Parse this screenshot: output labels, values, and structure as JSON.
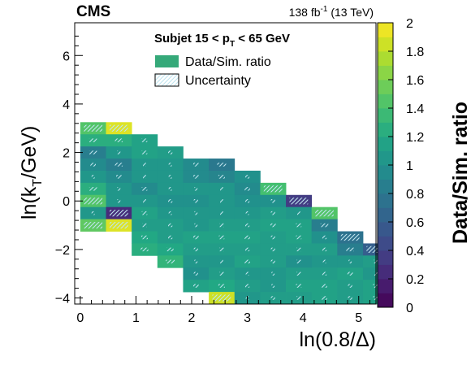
{
  "header": {
    "experiment": "CMS",
    "lumi": "138 fb",
    "lumi_exp": "-1",
    "energy": " (13 TeV)"
  },
  "legend": {
    "title_pre": "Subjet 15 < p",
    "title_sub": "T",
    "title_post": " < 65 GeV",
    "ratio_label": "Data/Sim. ratio",
    "uncertainty_label": "Uncertainty",
    "ratio_color": "#35a979"
  },
  "axes": {
    "x_label": "ln(0.8/Δ)",
    "y_label_pre": "ln(k",
    "y_label_sub": "T",
    "y_label_post": "/GeV)",
    "colorbar_label": "Data/Sim. ratio"
  },
  "chart_data": {
    "type": "heatmap",
    "x_bin_width": 0.4615,
    "y_bin_width": 0.5,
    "xlim": [
      -0.1,
      5.31
    ],
    "ylim": [
      -4.25,
      7.35
    ],
    "x_ticks": [
      0,
      1,
      2,
      3,
      4,
      5
    ],
    "y_ticks": [
      -4,
      -2,
      0,
      2,
      4,
      6
    ],
    "zlim": [
      0,
      2
    ],
    "z_ticks": [
      "0",
      "0.2",
      "0.4",
      "0.6",
      "0.8",
      "1",
      "1.2",
      "1.4",
      "1.6",
      "1.8",
      "2"
    ],
    "colormap": "viridis",
    "columns": [
      {
        "x0": 0.0,
        "y_top": 3.25,
        "values": [
          1.45,
          1.25,
          0.85,
          0.95,
          1.05,
          1.25,
          1.45,
          1.05,
          1.5
        ]
      },
      {
        "x0": 0.4615,
        "y_top": 3.25,
        "values": [
          1.9,
          1.25,
          1.05,
          0.85,
          0.95,
          1.05,
          1.05,
          0.25,
          1.9
        ]
      },
      {
        "x0": 0.923,
        "y_top": 2.75,
        "values": [
          1.15,
          1.15,
          1.05,
          1.05,
          0.95,
          1.05,
          1.15,
          1.1,
          1.2,
          1.25
        ]
      },
      {
        "x0": 1.3845,
        "y_top": 2.25,
        "values": [
          1.1,
          1.05,
          1.05,
          1.05,
          1.0,
          1.05,
          1.1,
          1.1,
          1.2,
          1.3
        ]
      },
      {
        "x0": 1.846,
        "y_top": 1.75,
        "values": [
          0.95,
          0.95,
          1.05,
          1.0,
          1.05,
          1.05,
          1.15,
          1.1,
          1.05,
          1.0,
          1.15
        ]
      },
      {
        "x0": 2.3075,
        "y_top": 1.75,
        "values": [
          0.8,
          0.9,
          1.05,
          1.05,
          1.05,
          1.1,
          1.15,
          1.1,
          1.05,
          1.1,
          1.2,
          1.85
        ]
      },
      {
        "x0": 2.769,
        "y_top": 1.25,
        "values": [
          1.0,
          0.95,
          1.0,
          1.05,
          1.1,
          1.15,
          1.1,
          1.15,
          1.05,
          1.1,
          1.05
        ]
      },
      {
        "x0": 3.2305,
        "y_top": 0.75,
        "values": [
          1.4,
          1.0,
          1.1,
          1.15,
          1.1,
          1.1,
          1.1,
          1.05,
          1.05,
          1.1
        ]
      },
      {
        "x0": 3.692,
        "y_top": 0.25,
        "values": [
          0.35,
          1.05,
          1.15,
          1.15,
          1.1,
          1.0,
          1.1,
          1.15,
          1.1
        ]
      },
      {
        "x0": 4.1535,
        "y_top": -0.25,
        "values": [
          1.45,
          0.85,
          1.0,
          1.1,
          1.05,
          1.1,
          1.15,
          1.15
        ]
      },
      {
        "x0": 4.615,
        "y_top": -1.25,
        "values": [
          0.75,
          0.85,
          1.05,
          1.15,
          1.1,
          1.1
        ]
      },
      {
        "x0": 5.0765,
        "y_top": -1.75,
        "values": [
          0.6,
          1.1,
          1.05,
          1.15,
          1.15
        ]
      }
    ]
  }
}
